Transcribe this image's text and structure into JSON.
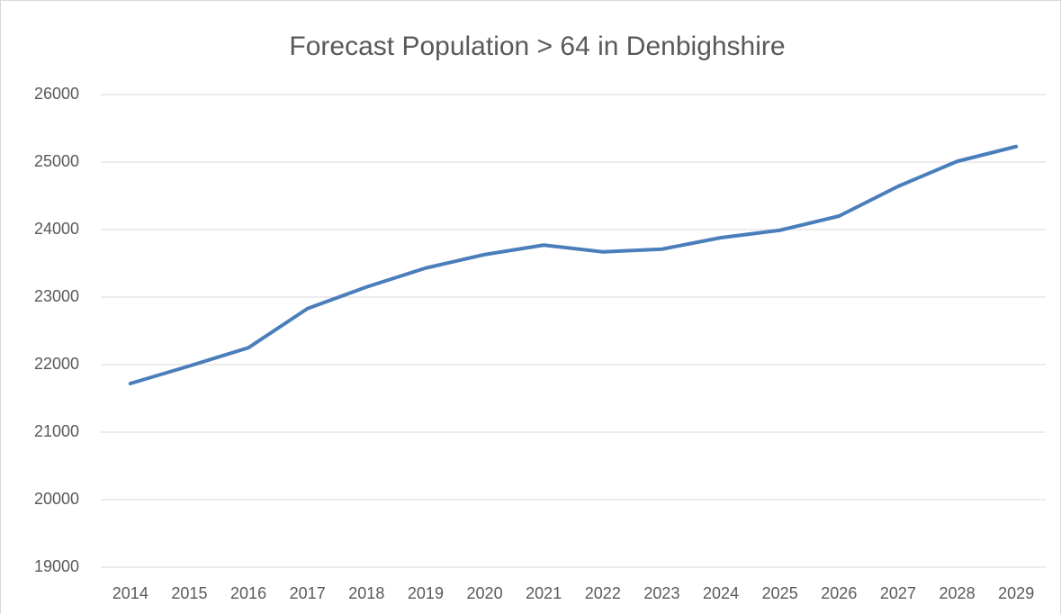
{
  "chart_data": {
    "type": "line",
    "title": "Forecast Population > 64 in Denbighshire",
    "categories": [
      "2014",
      "2015",
      "2016",
      "2017",
      "2018",
      "2019",
      "2020",
      "2021",
      "2022",
      "2023",
      "2024",
      "2025",
      "2026",
      "2027",
      "2028",
      "2029"
    ],
    "series": [
      {
        "color": "#4a7ebb",
        "values": [
          21720,
          21980,
          22250,
          22830,
          23150,
          23430,
          23630,
          23770,
          23670,
          23710,
          23880,
          23990,
          24200,
          24640,
          25010,
          25230
        ]
      }
    ],
    "ylim": [
      19000,
      26000
    ],
    "yticks": [
      19000,
      20000,
      21000,
      22000,
      23000,
      24000,
      25000,
      26000
    ],
    "grid": true
  }
}
